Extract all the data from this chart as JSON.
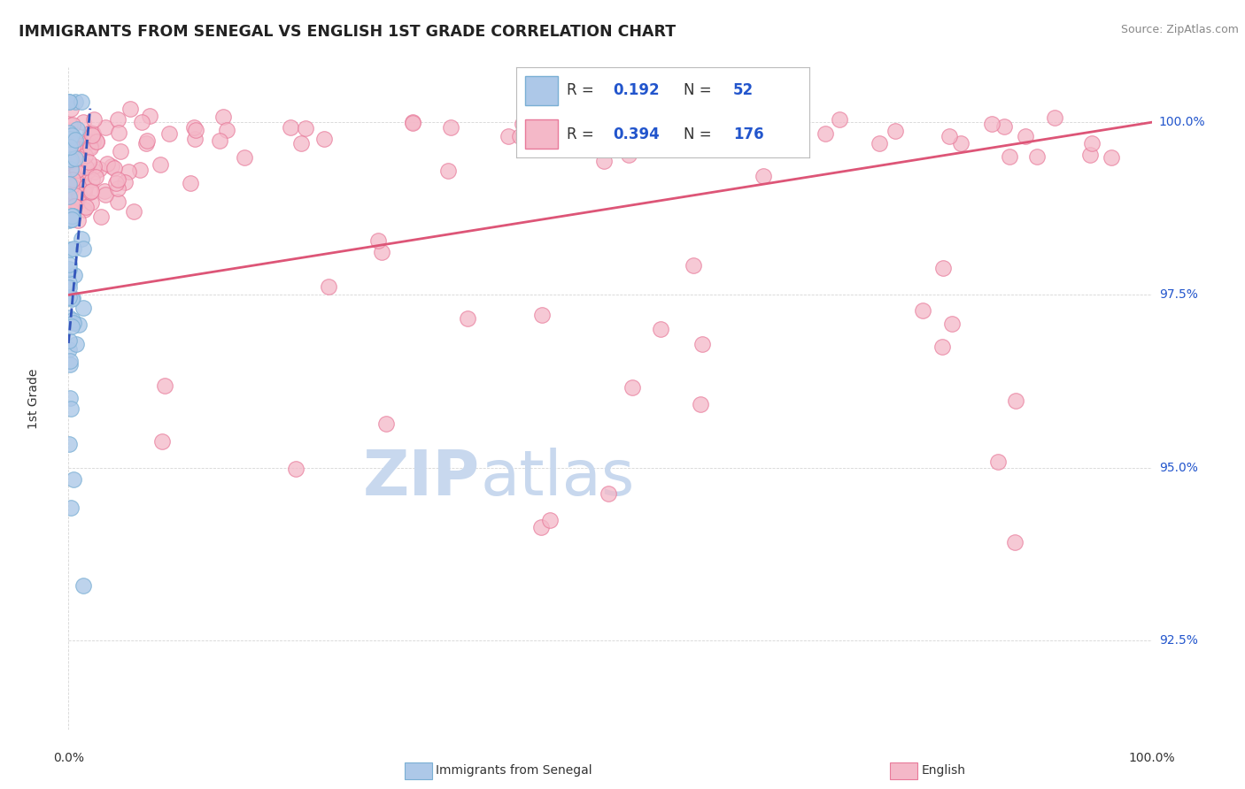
{
  "title": "IMMIGRANTS FROM SENEGAL VS ENGLISH 1ST GRADE CORRELATION CHART",
  "source_text": "Source: ZipAtlas.com",
  "xlabel_bottom": "Immigrants from Senegal",
  "xlabel_right": "English",
  "ylabel": "1st Grade",
  "xlim": [
    0.0,
    100.0
  ],
  "ylim": [
    91.2,
    100.8
  ],
  "yticks": [
    92.5,
    95.0,
    97.5,
    100.0
  ],
  "ytick_labels": [
    "92.5%",
    "95.0%",
    "97.5%",
    "100.0%"
  ],
  "blue_R": 0.192,
  "blue_N": 52,
  "pink_R": 0.394,
  "pink_N": 176,
  "blue_color": "#adc8e8",
  "blue_edge": "#7aafd4",
  "pink_color": "#f4b8c8",
  "pink_edge": "#e87a9a",
  "blue_line_color": "#3355bb",
  "pink_line_color": "#dd5577",
  "background_color": "#ffffff",
  "grid_color": "#bbbbbb",
  "watermark_color_zip": "#c8d8ee",
  "watermark_color_atlas": "#c8d8ee",
  "legend_text_color": "#2255cc",
  "title_color": "#222222",
  "source_color": "#888888",
  "axis_label_color": "#333333",
  "tick_label_color": "#2255cc"
}
